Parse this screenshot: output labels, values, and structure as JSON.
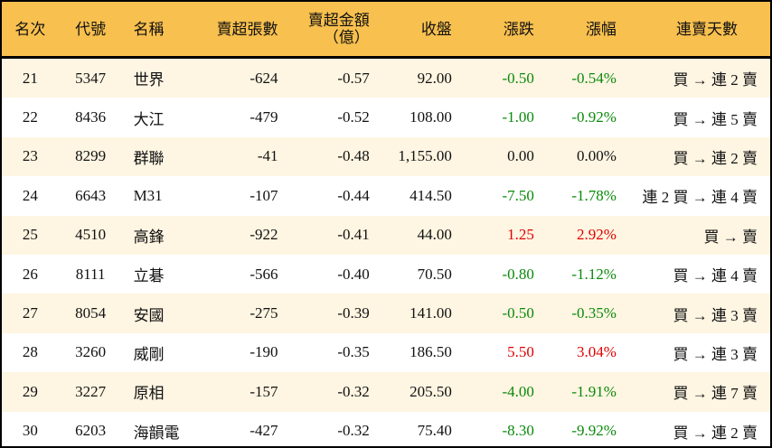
{
  "headers": {
    "rank": "名次",
    "code": "代號",
    "name": "名稱",
    "sell_lots": "賣超張數",
    "sell_amount": "賣超金額",
    "sell_amount_unit": "（億）",
    "close": "收盤",
    "change": "漲跌",
    "change_pct": "漲幅",
    "streak": "連賣天數"
  },
  "colors": {
    "header_bg": "#F8C04E",
    "odd_row_bg": "#FEF5E2",
    "up": "#e00000",
    "down": "#0a8a0a"
  },
  "rows": [
    {
      "rank": "21",
      "code": "5347",
      "name": "世界",
      "sell_lots": "-624",
      "sell_amount": "-0.57",
      "close": "92.00",
      "change": "-0.50",
      "change_pct": "-0.54%",
      "dir": "down",
      "streak": "買 → 連 2 賣"
    },
    {
      "rank": "22",
      "code": "8436",
      "name": "大江",
      "sell_lots": "-479",
      "sell_amount": "-0.52",
      "close": "108.00",
      "change": "-1.00",
      "change_pct": "-0.92%",
      "dir": "down",
      "streak": "買 → 連 5 賣"
    },
    {
      "rank": "23",
      "code": "8299",
      "name": "群聯",
      "sell_lots": "-41",
      "sell_amount": "-0.48",
      "close": "1,155.00",
      "change": "0.00",
      "change_pct": "0.00%",
      "dir": "flat",
      "streak": "買 → 連 2 賣"
    },
    {
      "rank": "24",
      "code": "6643",
      "name": "M31",
      "sell_lots": "-107",
      "sell_amount": "-0.44",
      "close": "414.50",
      "change": "-7.50",
      "change_pct": "-1.78%",
      "dir": "down",
      "streak": "連 2 買 → 連 4 賣"
    },
    {
      "rank": "25",
      "code": "4510",
      "name": "高鋒",
      "sell_lots": "-922",
      "sell_amount": "-0.41",
      "close": "44.00",
      "change": "1.25",
      "change_pct": "2.92%",
      "dir": "up",
      "streak": "買 → 賣"
    },
    {
      "rank": "26",
      "code": "8111",
      "name": "立碁",
      "sell_lots": "-566",
      "sell_amount": "-0.40",
      "close": "70.50",
      "change": "-0.80",
      "change_pct": "-1.12%",
      "dir": "down",
      "streak": "買 → 連 4 賣"
    },
    {
      "rank": "27",
      "code": "8054",
      "name": "安國",
      "sell_lots": "-275",
      "sell_amount": "-0.39",
      "close": "141.00",
      "change": "-0.50",
      "change_pct": "-0.35%",
      "dir": "down",
      "streak": "買 → 連 3 賣"
    },
    {
      "rank": "28",
      "code": "3260",
      "name": "威剛",
      "sell_lots": "-190",
      "sell_amount": "-0.35",
      "close": "186.50",
      "change": "5.50",
      "change_pct": "3.04%",
      "dir": "up",
      "streak": "買 → 連 3 賣"
    },
    {
      "rank": "29",
      "code": "3227",
      "name": "原相",
      "sell_lots": "-157",
      "sell_amount": "-0.32",
      "close": "205.50",
      "change": "-4.00",
      "change_pct": "-1.91%",
      "dir": "down",
      "streak": "買 → 連 7 賣"
    },
    {
      "rank": "30",
      "code": "6203",
      "name": "海韻電",
      "sell_lots": "-427",
      "sell_amount": "-0.32",
      "close": "75.40",
      "change": "-8.30",
      "change_pct": "-9.92%",
      "dir": "down",
      "streak": "買 → 連 2 賣"
    }
  ]
}
